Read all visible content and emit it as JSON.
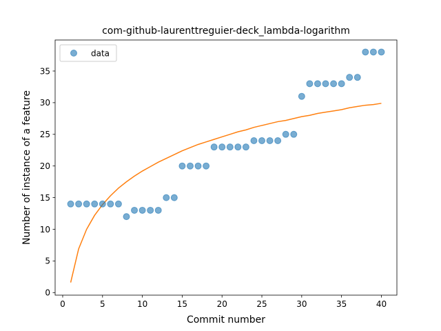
{
  "chart_data": {
    "type": "scatter",
    "title": "com-github-laurenttreguier-deck_lambda-logarithm",
    "xlabel": "Commit number",
    "ylabel": "Number of instance of a feature",
    "xlim": [
      -0.95,
      41.95
    ],
    "ylim": [
      -0.4,
      39.9
    ],
    "xticks": [
      0,
      5,
      10,
      15,
      20,
      25,
      30,
      35,
      40
    ],
    "yticks": [
      0,
      5,
      10,
      15,
      20,
      25,
      30,
      35
    ],
    "grid": false,
    "legend": {
      "placement": "top-left",
      "entries": [
        "data"
      ]
    },
    "series": [
      {
        "name": "data",
        "kind": "scatter",
        "color": "#1f77b4",
        "x": [
          1,
          2,
          3,
          4,
          5,
          6,
          7,
          8,
          9,
          10,
          11,
          12,
          13,
          14,
          15,
          16,
          17,
          18,
          19,
          20,
          21,
          22,
          23,
          24,
          25,
          26,
          27,
          28,
          29,
          30,
          31,
          32,
          33,
          34,
          35,
          36,
          37,
          38,
          39,
          40
        ],
        "y": [
          14,
          14,
          14,
          14,
          14,
          14,
          14,
          12,
          13,
          13,
          13,
          13,
          15,
          15,
          20,
          20,
          20,
          20,
          23,
          23,
          23,
          23,
          23,
          24,
          24,
          24,
          24,
          25,
          25,
          31,
          33,
          33,
          33,
          33,
          33,
          34,
          34,
          38,
          38,
          38
        ]
      },
      {
        "kind": "line",
        "color": "#ff7f0e",
        "x": [
          1,
          2,
          3,
          4,
          5,
          6,
          7,
          8,
          9,
          10,
          11,
          12,
          13,
          14,
          15,
          16,
          17,
          18,
          19,
          20,
          21,
          22,
          23,
          24,
          25,
          26,
          27,
          28,
          29,
          30,
          31,
          32,
          33,
          34,
          35,
          36,
          37,
          38,
          39,
          40
        ],
        "y": [
          1.6,
          6.9,
          10.0,
          12.2,
          13.9,
          15.3,
          16.5,
          17.5,
          18.4,
          19.2,
          19.9,
          20.6,
          21.2,
          21.8,
          22.4,
          22.9,
          23.4,
          23.8,
          24.2,
          24.6,
          25.0,
          25.4,
          25.7,
          26.1,
          26.4,
          26.7,
          27.0,
          27.2,
          27.5,
          27.8,
          28.0,
          28.3,
          28.5,
          28.7,
          28.9,
          29.2,
          29.4,
          29.6,
          29.7,
          29.9
        ]
      }
    ]
  }
}
